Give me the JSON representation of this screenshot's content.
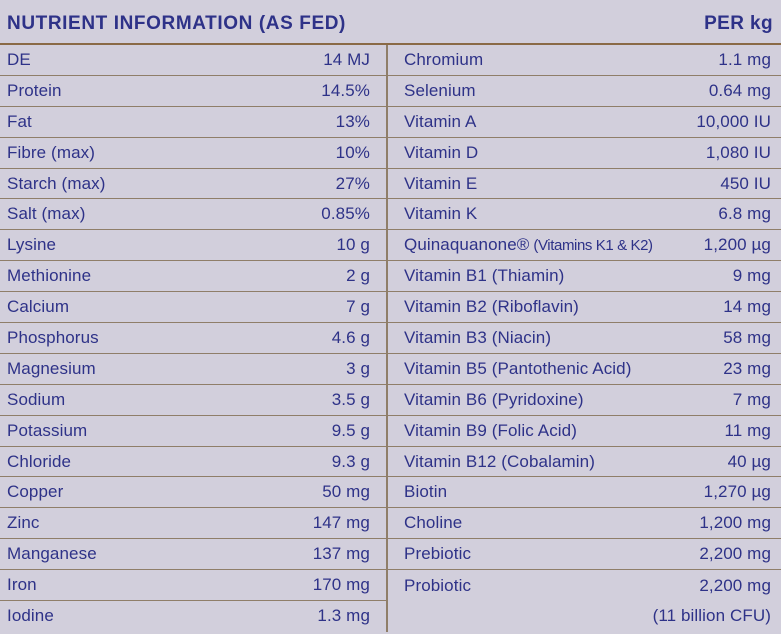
{
  "header": {
    "title": "NUTRIENT INFORMATION (AS FED)",
    "unit_label": "PER kg"
  },
  "table": {
    "left_rows": [
      {
        "label": "DE",
        "value": "14 MJ"
      },
      {
        "label": "Protein",
        "value": "14.5%"
      },
      {
        "label": "Fat",
        "value": "13%"
      },
      {
        "label": "Fibre (max)",
        "value": "10%"
      },
      {
        "label": "Starch (max)",
        "value": "27%"
      },
      {
        "label": "Salt (max)",
        "value": "0.85%"
      },
      {
        "label": "Lysine",
        "value": "10 g"
      },
      {
        "label": "Methionine",
        "value": "2 g"
      },
      {
        "label": "Calcium",
        "value": "7 g"
      },
      {
        "label": "Phosphorus",
        "value": "4.6 g"
      },
      {
        "label": "Magnesium",
        "value": "3 g"
      },
      {
        "label": "Sodium",
        "value": "3.5 g"
      },
      {
        "label": "Potassium",
        "value": "9.5 g"
      },
      {
        "label": "Chloride",
        "value": "9.3 g"
      },
      {
        "label": "Copper",
        "value": "50 mg"
      },
      {
        "label": "Zinc",
        "value": "147 mg"
      },
      {
        "label": "Manganese",
        "value": "137 mg"
      },
      {
        "label": "Iron",
        "value": "170 mg"
      },
      {
        "label": "Iodine",
        "value": "1.3 mg"
      }
    ],
    "right_rows": [
      {
        "label": "Chromium",
        "value": "1.1 mg"
      },
      {
        "label": "Selenium",
        "value": "0.64 mg"
      },
      {
        "label": "Vitamin A",
        "value": "10,000 IU"
      },
      {
        "label": "Vitamin D",
        "value": "1,080 IU"
      },
      {
        "label": "Vitamin E",
        "value": "450 IU"
      },
      {
        "label": "Vitamin K",
        "value": "6.8 mg"
      },
      {
        "label": "Quinaquanone®",
        "note": "(Vitamins K1 & K2)",
        "value": "1,200 µg"
      },
      {
        "label": "Vitamin B1 (Thiamin)",
        "value": "9 mg"
      },
      {
        "label": "Vitamin B2 (Riboflavin)",
        "value": "14 mg"
      },
      {
        "label": "Vitamin B3 (Niacin)",
        "value": "58 mg"
      },
      {
        "label": "Vitamin B5 (Pantothenic Acid)",
        "value": "23 mg"
      },
      {
        "label": "Vitamin B6 (Pyridoxine)",
        "value": "7 mg"
      },
      {
        "label": "Vitamin B9 (Folic Acid)",
        "value": "11 mg"
      },
      {
        "label": "Vitamin B12 (Cobalamin)",
        "value": "40 µg"
      },
      {
        "label": "Biotin",
        "value": "1,270 µg"
      },
      {
        "label": "Choline",
        "value": "1,200 mg"
      },
      {
        "label": "Prebiotic",
        "value": "2,200 mg"
      },
      {
        "label": "Probiotic",
        "value": "2,200 mg"
      },
      {
        "label": "",
        "value": "(11 billion CFU)"
      }
    ]
  },
  "colors": {
    "background": "#d2cfdc",
    "text": "#2e3288",
    "row_line": "#8f7e69",
    "header_line": "#8a6a46"
  }
}
